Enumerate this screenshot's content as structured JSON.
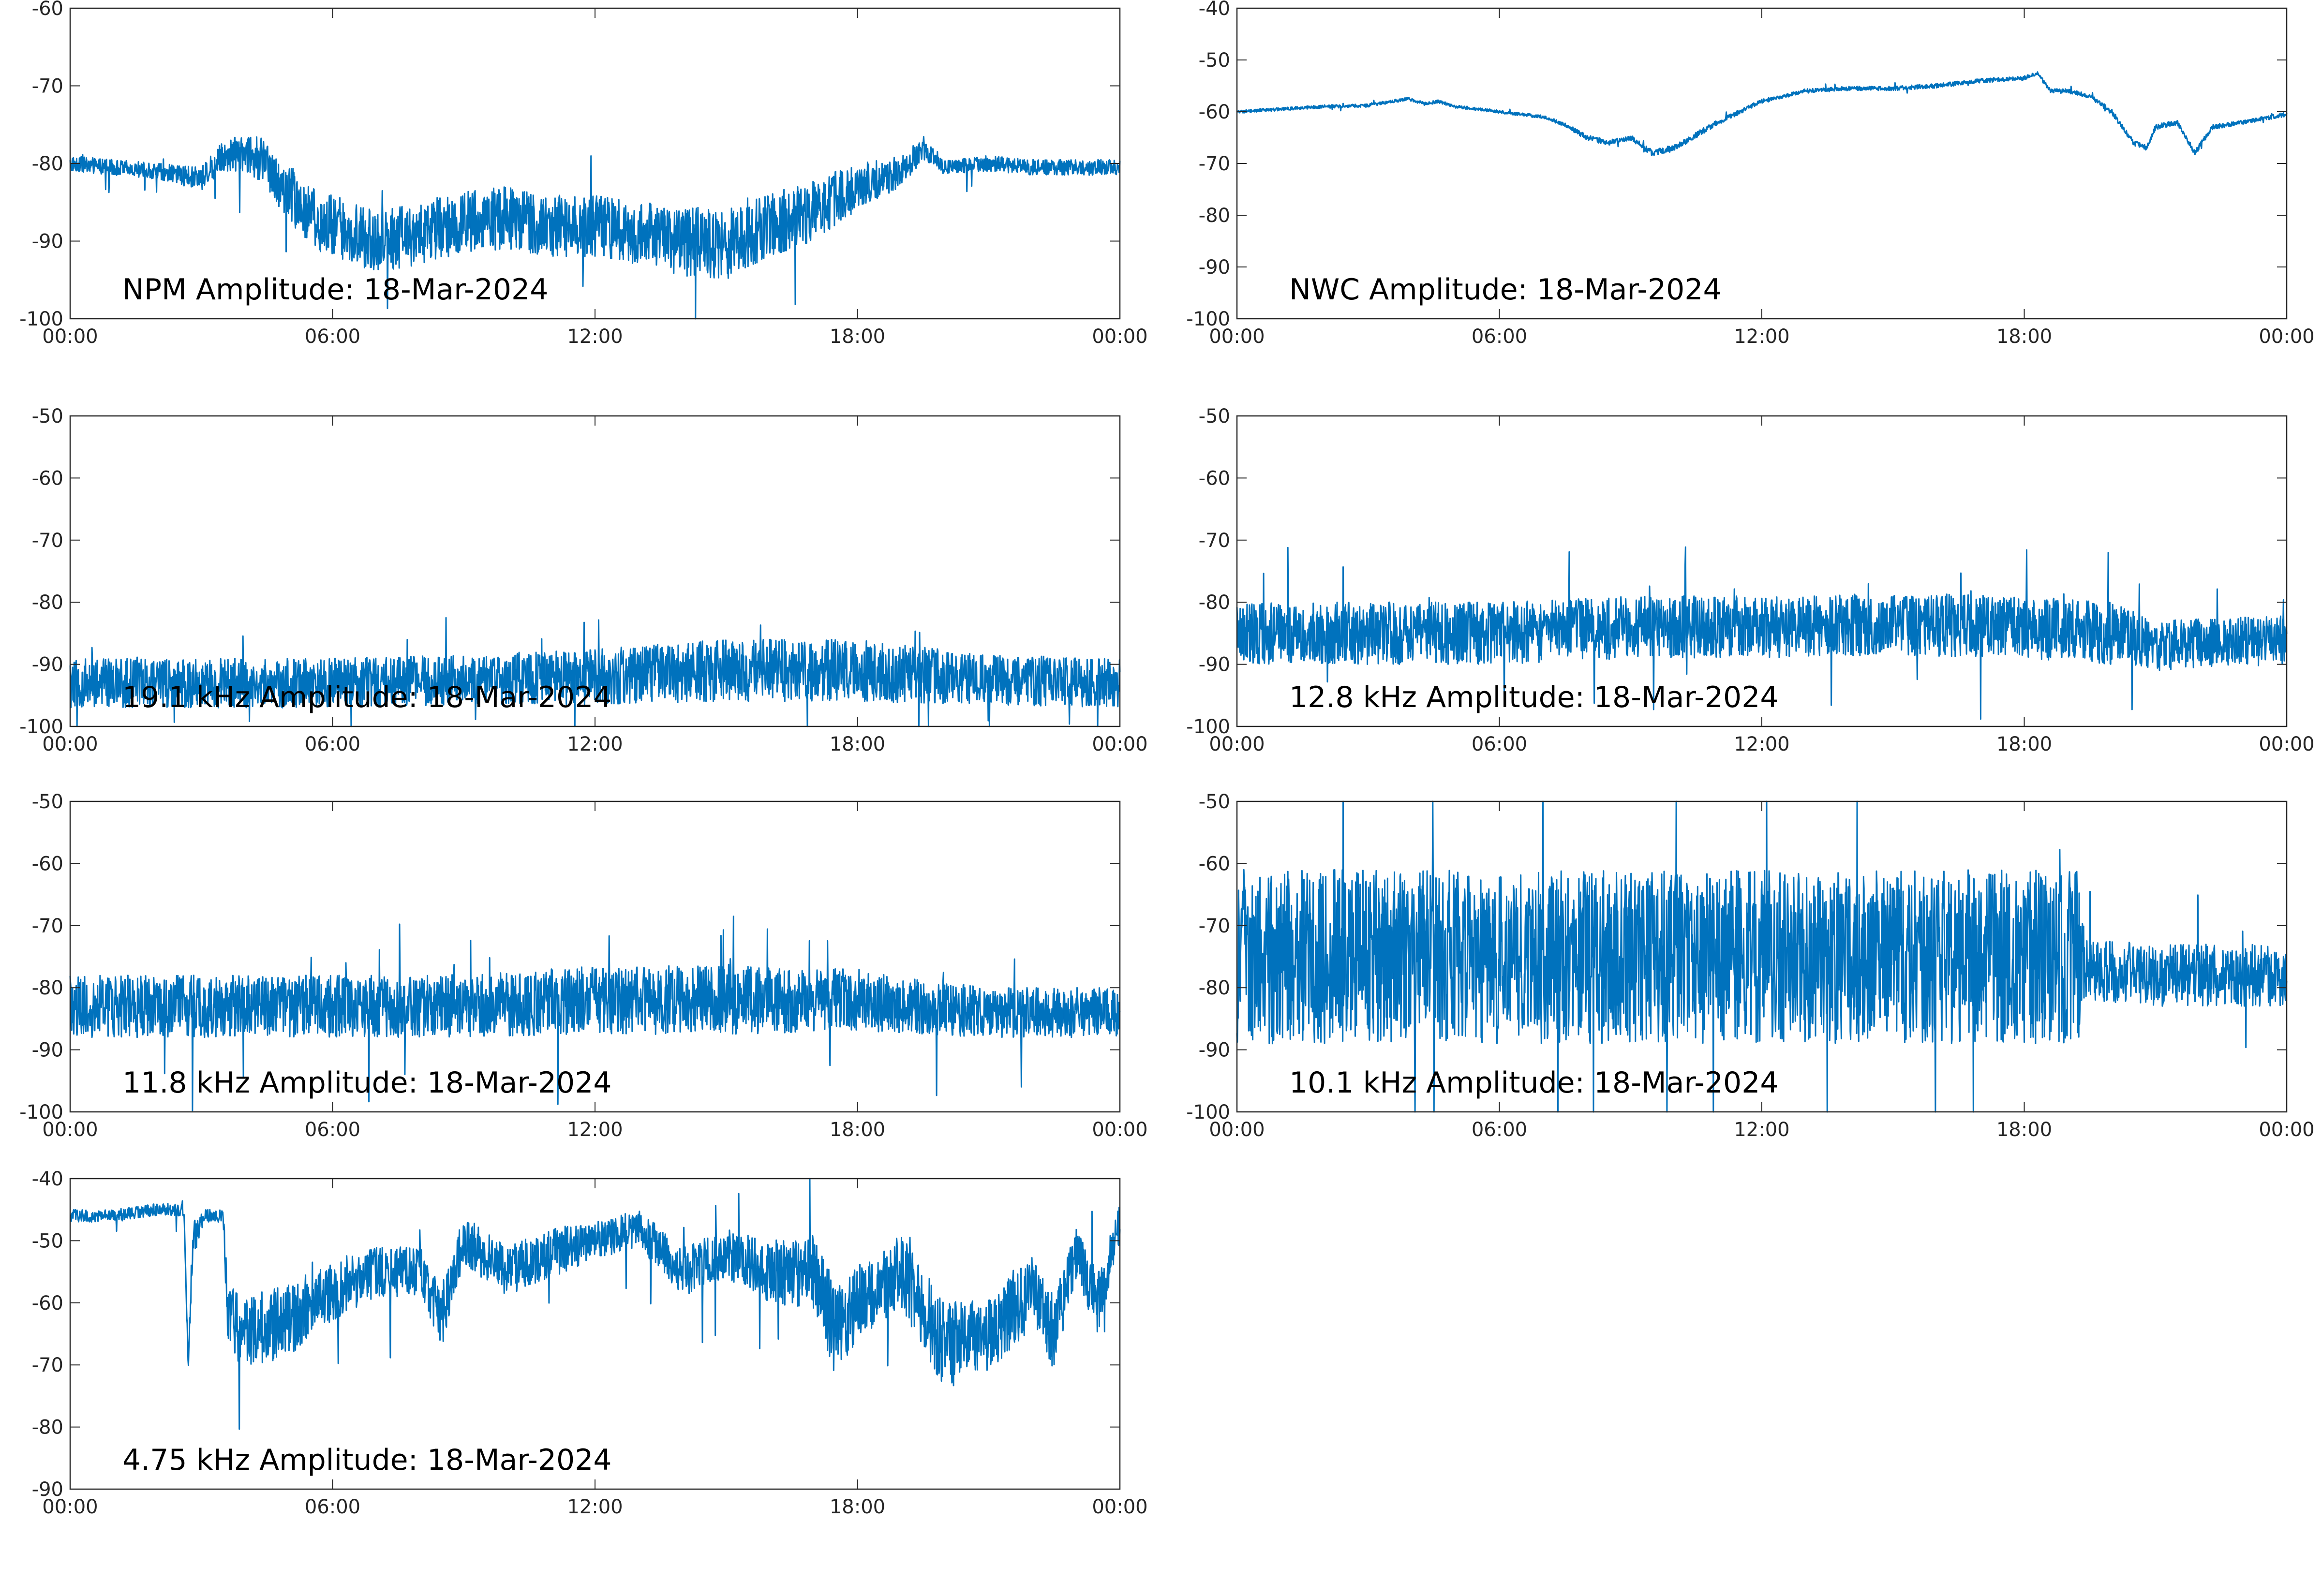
{
  "colors": {
    "series": "#0072BD",
    "axes": "#262626",
    "background": "#ffffff"
  },
  "chart_data": [
    {
      "type": "line",
      "title": "NPM Amplitude: 18-Mar-2024",
      "xlabel": "",
      "ylabel": "",
      "x_ticks": [
        "00:00",
        "06:00",
        "12:00",
        "18:00",
        "00:00"
      ],
      "y_ticks": [
        -60,
        -70,
        -80,
        -90,
        -100
      ],
      "ylim": [
        -100,
        -60
      ],
      "x_hours": [
        0,
        1,
        2,
        3,
        3.5,
        4,
        4.5,
        5,
        5.5,
        6,
        7,
        8,
        9,
        10,
        11,
        12,
        13,
        14,
        15,
        16,
        16.5,
        17,
        18,
        19,
        19.5,
        20,
        21,
        22,
        23,
        24
      ],
      "values": [
        -80,
        -80.5,
        -81,
        -82,
        -79,
        -78.5,
        -80,
        -84,
        -87,
        -88,
        -90,
        -89,
        -87.5,
        -87,
        -88,
        -88,
        -89,
        -90,
        -90.5,
        -88,
        -87,
        -86,
        -83,
        -81,
        -78,
        -80.5,
        -80,
        -80.5,
        -80.5,
        -80.5
      ],
      "noise": [
        1,
        1,
        1,
        1.5,
        2,
        2.5,
        3,
        4,
        4,
        4,
        4,
        4,
        4,
        4,
        4,
        4,
        4,
        4.5,
        4.5,
        4,
        4,
        4,
        3,
        2,
        1.5,
        1,
        1,
        1,
        1,
        1
      ]
    },
    {
      "type": "line",
      "title": "NWC Amplitude: 18-Mar-2024",
      "xlabel": "",
      "ylabel": "",
      "x_ticks": [
        "00:00",
        "06:00",
        "12:00",
        "18:00",
        "00:00"
      ],
      "y_ticks": [
        -40,
        -50,
        -60,
        -70,
        -80,
        -90,
        -100
      ],
      "ylim": [
        -100,
        -40
      ],
      "x_hours": [
        0,
        1,
        2,
        3,
        3.9,
        4.3,
        4.6,
        5,
        6,
        7,
        7.5,
        8,
        8.5,
        9,
        9.5,
        10,
        11,
        12,
        13,
        14,
        15,
        16,
        17,
        18,
        18.3,
        18.6,
        19,
        19.5,
        20,
        20.5,
        20.8,
        21,
        21.5,
        21.9,
        22.3,
        23,
        24
      ],
      "values": [
        -60,
        -59.5,
        -59,
        -58.8,
        -57.5,
        -58.5,
        -58,
        -59,
        -60,
        -61,
        -62.5,
        -65,
        -66,
        -65,
        -68,
        -67,
        -62,
        -58,
        -56,
        -55.5,
        -55.5,
        -55,
        -54,
        -53.5,
        -52.5,
        -56,
        -56,
        -57,
        -60,
        -66,
        -67,
        -63,
        -62,
        -68,
        -63,
        -62,
        -60.5
      ],
      "noise": [
        0.3,
        0.3,
        0.3,
        0.3,
        0.3,
        0.3,
        0.3,
        0.3,
        0.3,
        0.3,
        0.4,
        0.5,
        0.5,
        0.5,
        0.6,
        0.6,
        0.5,
        0.4,
        0.4,
        0.4,
        0.4,
        0.4,
        0.4,
        0.4,
        0.4,
        0.4,
        0.4,
        0.4,
        0.5,
        0.5,
        0.5,
        0.5,
        0.5,
        0.5,
        0.5,
        0.4,
        0.4
      ]
    },
    {
      "type": "line",
      "title": "19.1 kHz Amplitude: 18-Mar-2024",
      "xlabel": "",
      "ylabel": "",
      "x_ticks": [
        "00:00",
        "06:00",
        "12:00",
        "18:00",
        "00:00"
      ],
      "y_ticks": [
        -50,
        -60,
        -70,
        -80,
        -90,
        -100
      ],
      "ylim": [
        -100,
        -50
      ],
      "x_hours": [
        0,
        3,
        6,
        9,
        12,
        15,
        18,
        21,
        24
      ],
      "values": [
        -93,
        -93,
        -93,
        -92.5,
        -92,
        -91,
        -91,
        -92.5,
        -93
      ],
      "noise": [
        4,
        4,
        4,
        4,
        4.5,
        5,
        5,
        4,
        4
      ]
    },
    {
      "type": "line",
      "title": "12.8 kHz Amplitude: 18-Mar-2024",
      "xlabel": "",
      "ylabel": "",
      "x_ticks": [
        "00:00",
        "06:00",
        "12:00",
        "18:00",
        "00:00"
      ],
      "y_ticks": [
        -50,
        -60,
        -70,
        -80,
        -90,
        -100
      ],
      "ylim": [
        -100,
        -50
      ],
      "x_hours": [
        0,
        3,
        6,
        9,
        12,
        15,
        18,
        20,
        21,
        24
      ],
      "values": [
        -85,
        -85,
        -85,
        -84,
        -84,
        -83.5,
        -84,
        -85,
        -87,
        -86
      ],
      "noise": [
        5,
        5,
        5,
        5,
        5,
        5,
        5,
        5,
        4,
        4
      ]
    },
    {
      "type": "line",
      "title": "11.8 kHz Amplitude: 18-Mar-2024",
      "xlabel": "",
      "ylabel": "",
      "x_ticks": [
        "00:00",
        "06:00",
        "12:00",
        "18:00",
        "00:00"
      ],
      "y_ticks": [
        -50,
        -60,
        -70,
        -80,
        -90,
        -100
      ],
      "ylim": [
        -100,
        -50
      ],
      "x_hours": [
        0,
        3,
        6,
        9,
        12,
        15,
        18,
        21,
        24
      ],
      "values": [
        -83,
        -83,
        -83,
        -83,
        -82,
        -82,
        -82,
        -84,
        -84
      ],
      "noise": [
        5,
        5,
        5,
        5,
        5.5,
        5.5,
        5,
        4,
        4
      ]
    },
    {
      "type": "line",
      "title": "10.1 kHz Amplitude: 18-Mar-2024",
      "xlabel": "",
      "ylabel": "",
      "x_ticks": [
        "00:00",
        "06:00",
        "12:00",
        "18:00",
        "00:00"
      ],
      "y_ticks": [
        -50,
        -60,
        -70,
        -80,
        -90,
        -100
      ],
      "ylim": [
        -100,
        -50
      ],
      "x_hours": [
        0,
        3,
        6,
        9,
        12,
        15,
        18,
        19.3,
        19.4,
        21,
        24
      ],
      "values": [
        -75,
        -75,
        -75,
        -75,
        -75,
        -75,
        -75,
        -75,
        -77,
        -78,
        -78
      ],
      "noise": [
        14,
        14,
        14,
        14,
        14,
        14,
        14,
        14,
        5,
        5,
        5
      ]
    },
    {
      "type": "line",
      "title": "4.75 kHz Amplitude: 18-Mar-2024",
      "xlabel": "",
      "ylabel": "",
      "x_ticks": [
        "00:00",
        "06:00",
        "12:00",
        "18:00",
        "00:00"
      ],
      "y_ticks": [
        -40,
        -50,
        -60,
        -70,
        -80,
        -90
      ],
      "ylim": [
        -90,
        -40
      ],
      "x_hours": [
        0,
        1,
        2,
        2.6,
        2.7,
        2.8,
        3.1,
        3.5,
        3.6,
        4,
        5,
        6,
        7,
        8,
        8.5,
        9,
        10,
        11,
        12,
        13,
        14,
        15,
        16,
        17,
        17.5,
        18,
        19,
        20,
        21,
        22,
        22.5,
        23,
        23.5,
        24
      ],
      "values": [
        -46,
        -46,
        -45,
        -45,
        -70,
        -50,
        -46,
        -46,
        -62,
        -65,
        -63,
        -58,
        -55,
        -55,
        -62,
        -50,
        -55,
        -52,
        -50,
        -48,
        -55,
        -52,
        -55,
        -55,
        -65,
        -60,
        -55,
        -67,
        -65,
        -58,
        -65,
        -52,
        -60,
        -47
      ],
      "noise": [
        1,
        1,
        1,
        1,
        1,
        3,
        1,
        1,
        5,
        6,
        6,
        5,
        4,
        4,
        5,
        4,
        4,
        4,
        3,
        3,
        4,
        4,
        5,
        6,
        7,
        6,
        6,
        7,
        6,
        6,
        6,
        4,
        5,
        3
      ]
    }
  ]
}
